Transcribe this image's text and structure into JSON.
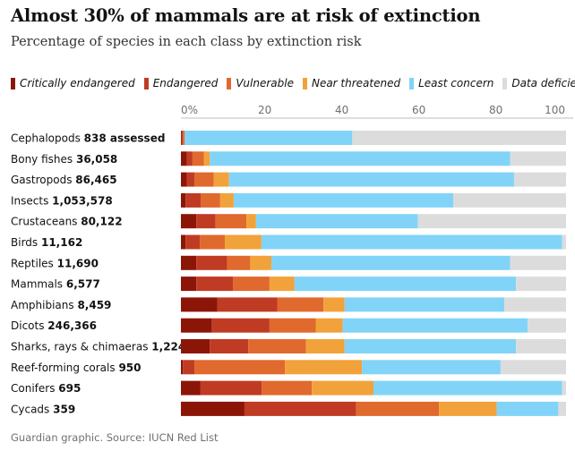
{
  "header": {
    "title": "Almost 30% of mammals are at risk of extinction",
    "subtitle": "Percentage of species in each class by extinction risk"
  },
  "legend": [
    {
      "label": "Critically endangered",
      "color": "#8b1608"
    },
    {
      "label": "Endangered",
      "color": "#c03b23"
    },
    {
      "label": "Vulnerable",
      "color": "#e0692e"
    },
    {
      "label": "Near threatened",
      "color": "#f2a23a"
    },
    {
      "label": "Least concern",
      "color": "#81d4f8"
    },
    {
      "label": "Data deficient",
      "color": "#dcdcdc"
    }
  ],
  "chart_data": {
    "type": "bar",
    "orientation": "horizontal",
    "stacked": true,
    "xlim": [
      0,
      100
    ],
    "x_ticks": [
      0,
      20,
      40,
      60,
      80,
      100
    ],
    "x_tick_labels": [
      "0%",
      "20",
      "40",
      "60",
      "80",
      "100"
    ],
    "grid": false,
    "legend_position": "top",
    "categories": [
      {
        "name": "Cephalopods",
        "count": "838 assessed"
      },
      {
        "name": "Bony fishes",
        "count": "36,058"
      },
      {
        "name": "Gastropods",
        "count": "86,465"
      },
      {
        "name": "Insects",
        "count": "1,053,578"
      },
      {
        "name": "Crustaceans",
        "count": "80,122"
      },
      {
        "name": "Birds",
        "count": "11,162"
      },
      {
        "name": "Reptiles",
        "count": "11,690"
      },
      {
        "name": "Mammals",
        "count": "6,577"
      },
      {
        "name": "Amphibians",
        "count": "8,459"
      },
      {
        "name": "Dicots",
        "count": "246,366"
      },
      {
        "name": "Sharks, rays & chimaeras",
        "count": "1,224"
      },
      {
        "name": "Reef-forming corals",
        "count": "950"
      },
      {
        "name": "Conifers",
        "count": "695"
      },
      {
        "name": "Cycads",
        "count": "359"
      }
    ],
    "series": [
      {
        "name": "Critically endangered",
        "values": [
          0.2,
          1.5,
          1.5,
          1.2,
          4,
          1.2,
          4,
          4,
          9.5,
          8,
          7.5,
          0.5,
          5,
          16.5
        ]
      },
      {
        "name": "Endangered",
        "values": [
          0.3,
          1.5,
          2,
          4,
          5,
          3.7,
          8,
          9.5,
          15.5,
          15,
          10,
          3,
          16,
          29
        ]
      },
      {
        "name": "Vulnerable",
        "values": [
          0.5,
          3,
          5,
          5,
          8,
          6.5,
          6,
          9.5,
          12,
          12,
          15,
          23.5,
          13,
          21.5
        ]
      },
      {
        "name": "Near threatened",
        "values": [
          0,
          1.5,
          4,
          3.5,
          2.5,
          9.5,
          5.5,
          6.5,
          5.5,
          7,
          10,
          20,
          16,
          15
        ]
      },
      {
        "name": "Least concern",
        "values": [
          43.5,
          78,
          74,
          57,
          42,
          78.1,
          62,
          57.5,
          41.5,
          48,
          44.5,
          36,
          49,
          16
        ]
      },
      {
        "name": "Data deficient",
        "values": [
          55.5,
          14.5,
          13.5,
          29.3,
          38.5,
          1,
          14.5,
          13,
          16,
          10,
          13,
          17,
          1,
          2
        ]
      }
    ]
  },
  "footer": {
    "source": "Guardian graphic. Source: IUCN Red List"
  }
}
